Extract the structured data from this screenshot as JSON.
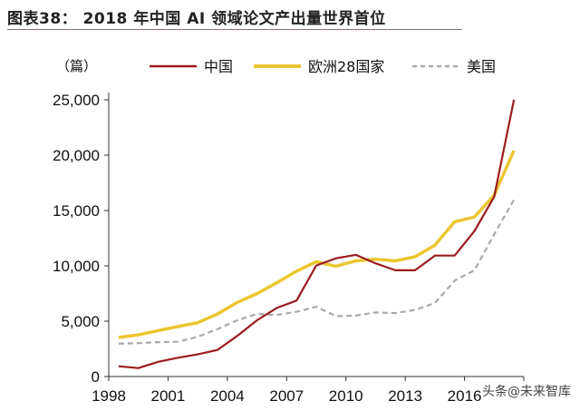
{
  "header": {
    "title": "图表38：  2018 年中国 AI 领域论文产出量世界首位"
  },
  "watermark": "头条@未来智库",
  "chart_data": {
    "type": "line",
    "title": "图表38：  2018 年中国 AI 领域论文产出量世界首位",
    "ylabel": "（篇）",
    "xlabel": "",
    "ylim": [
      0,
      25000
    ],
    "yticks": [
      "0",
      "5,000",
      "10,000",
      "15,000",
      "20,000",
      "25,000"
    ],
    "ytick_values": [
      0,
      5000,
      10000,
      15000,
      20000,
      25000
    ],
    "xtick_labels": [
      "1998",
      "2001",
      "2004",
      "2007",
      "2010",
      "2013",
      "2016"
    ],
    "legend_position": "top",
    "grid": false,
    "x": [
      1998,
      1999,
      2000,
      2001,
      2002,
      2003,
      2004,
      2005,
      2006,
      2007,
      2008,
      2009,
      2010,
      2011,
      2012,
      2013,
      2014,
      2015,
      2016,
      2017,
      2018
    ],
    "series": [
      {
        "name": "中国",
        "color": "#9b1c1f",
        "style": "solid",
        "values": [
          930,
          760,
          1330,
          1700,
          2000,
          2400,
          3670,
          5080,
          6200,
          6860,
          10030,
          10680,
          10990,
          10230,
          9600,
          9600,
          10930,
          10930,
          13140,
          16240,
          25000
        ]
      },
      {
        "name": "欧洲28国家",
        "color": "#ecc630",
        "style": "solid",
        "values": [
          3530,
          3760,
          4150,
          4520,
          4860,
          5650,
          6700,
          7490,
          8470,
          9520,
          10370,
          9970,
          10450,
          10590,
          10450,
          10820,
          11860,
          13980,
          14410,
          16380,
          20420
        ]
      },
      {
        "name": "美国",
        "color": "#a9a9a9",
        "style": "dashed",
        "values": [
          2970,
          3020,
          3110,
          3140,
          3590,
          4290,
          5080,
          5650,
          5560,
          5850,
          6300,
          5450,
          5510,
          5790,
          5730,
          6020,
          6640,
          8670,
          9600,
          12850,
          15960
        ]
      }
    ]
  }
}
